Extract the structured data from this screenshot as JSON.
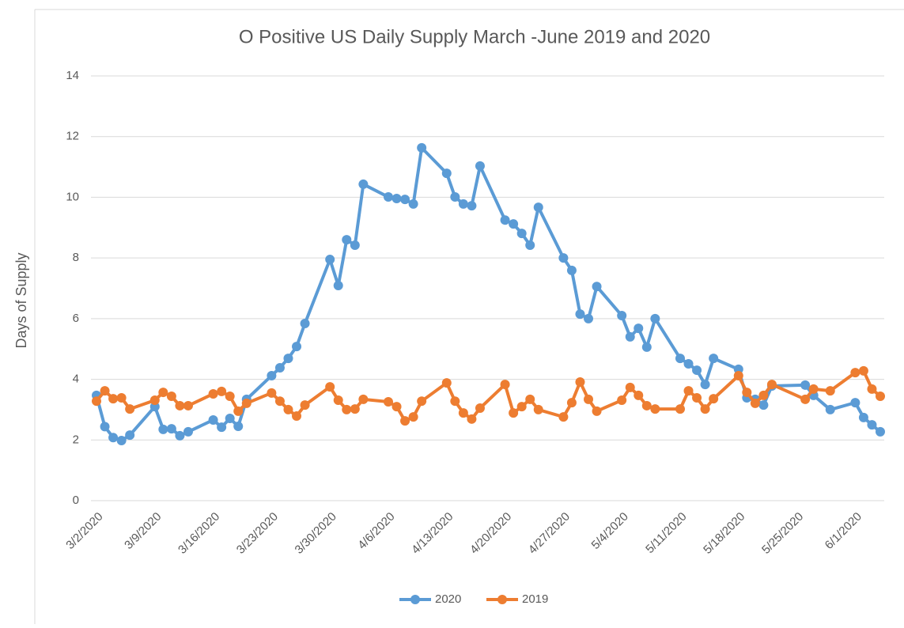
{
  "chart_data": {
    "type": "line",
    "title": "O Positive US Daily Supply March -June 2019 and 2020",
    "y_label": "Days of Supply",
    "x": [
      "3/2/2020",
      "3/3/2020",
      "3/4/2020",
      "3/5/2020",
      "3/6/2020",
      "3/9/2020",
      "3/10/2020",
      "3/11/2020",
      "3/12/2020",
      "3/13/2020",
      "3/16/2020",
      "3/17/2020",
      "3/18/2020",
      "3/19/2020",
      "3/20/2020",
      "3/23/2020",
      "3/24/2020",
      "3/25/2020",
      "3/26/2020",
      "3/27/2020",
      "3/30/2020",
      "3/31/2020",
      "4/1/2020",
      "4/2/2020",
      "4/3/2020",
      "4/6/2020",
      "4/7/2020",
      "4/8/2020",
      "4/9/2020",
      "4/10/2020",
      "4/13/2020",
      "4/14/2020",
      "4/15/2020",
      "4/16/2020",
      "4/17/2020",
      "4/20/2020",
      "4/21/2020",
      "4/22/2020",
      "4/23/2020",
      "4/24/2020",
      "4/27/2020",
      "4/28/2020",
      "4/29/2020",
      "4/30/2020",
      "5/1/2020",
      "5/4/2020",
      "5/5/2020",
      "5/6/2020",
      "5/7/2020",
      "5/8/2020",
      "5/11/2020",
      "5/12/2020",
      "5/13/2020",
      "5/14/2020",
      "5/15/2020",
      "5/18/2020",
      "5/19/2020",
      "5/20/2020",
      "5/21/2020",
      "5/22/2020",
      "5/26/2020",
      "5/27/2020",
      "5/29/2020",
      "6/1/2020",
      "6/2/2020",
      "6/3/2020",
      "6/4/2020"
    ],
    "series": [
      {
        "name": "2020",
        "color": "#5b9bd5",
        "values": [
          3.47,
          2.44,
          2.08,
          1.98,
          2.16,
          3.1,
          2.35,
          2.37,
          2.14,
          2.27,
          2.66,
          2.42,
          2.71,
          2.45,
          3.34,
          4.12,
          4.38,
          4.69,
          5.08,
          5.84,
          7.95,
          7.09,
          8.6,
          8.42,
          10.43,
          10.01,
          9.96,
          9.93,
          9.78,
          11.63,
          10.79,
          10.01,
          9.78,
          9.72,
          11.03,
          9.25,
          9.12,
          8.81,
          8.42,
          9.67,
          8.0,
          7.59,
          6.15,
          6.0,
          7.06,
          6.1,
          5.4,
          5.68,
          5.06,
          6.0,
          4.69,
          4.51,
          4.3,
          3.83,
          4.69,
          4.33,
          3.39,
          3.34,
          3.15,
          3.78,
          3.81,
          3.47,
          3.0,
          3.23,
          2.74,
          2.5,
          2.27
        ]
      },
      {
        "name": "2019",
        "color": "#ed7d31",
        "values": [
          3.28,
          3.62,
          3.36,
          3.39,
          3.02,
          3.31,
          3.57,
          3.44,
          3.13,
          3.13,
          3.52,
          3.6,
          3.44,
          2.95,
          3.21,
          3.55,
          3.28,
          3.0,
          2.79,
          3.15,
          3.75,
          3.31,
          3.0,
          3.02,
          3.34,
          3.26,
          3.1,
          2.63,
          2.76,
          3.28,
          3.88,
          3.28,
          2.89,
          2.69,
          3.05,
          3.83,
          2.89,
          3.1,
          3.34,
          3.0,
          2.76,
          3.23,
          3.91,
          3.34,
          2.95,
          3.31,
          3.73,
          3.47,
          3.13,
          3.02,
          3.02,
          3.62,
          3.39,
          3.02,
          3.36,
          4.12,
          3.57,
          3.21,
          3.47,
          3.83,
          3.34,
          3.68,
          3.62,
          4.22,
          4.28,
          3.68,
          3.44
        ]
      }
    ],
    "xlim": [
      "3/2/2020",
      "6/4/2020"
    ],
    "xticks": [
      "3/2/2020",
      "3/9/2020",
      "3/16/2020",
      "3/23/2020",
      "3/30/2020",
      "4/6/2020",
      "4/13/2020",
      "4/20/2020",
      "4/27/2020",
      "5/4/2020",
      "5/11/2020",
      "5/18/2020",
      "5/25/2020",
      "6/1/2020"
    ],
    "ylim": [
      0,
      14
    ],
    "yticks": [
      0,
      2,
      4,
      6,
      8,
      10,
      12,
      14
    ],
    "grid": true,
    "legend": "bottom"
  }
}
